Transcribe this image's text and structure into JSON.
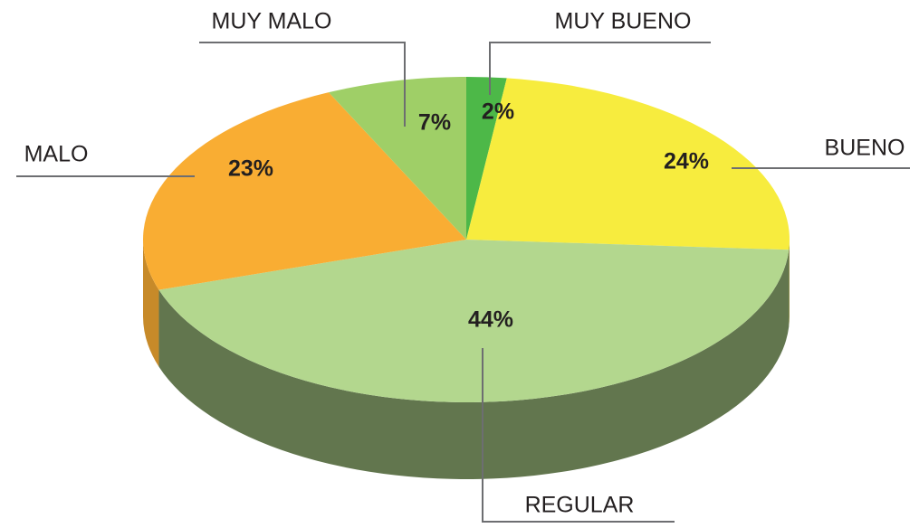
{
  "chart_data": {
    "type": "pie",
    "categories": [
      "MUY BUENO",
      "BUENO",
      "REGULAR",
      "MALO",
      "MUY MALO"
    ],
    "values": [
      2,
      24,
      44,
      23,
      7
    ],
    "value_labels": [
      "2%",
      "24%",
      "44%",
      "23%",
      "7%"
    ],
    "colors": [
      "#4db848",
      "#f7ec3e",
      "#b3d78e",
      "#f9ad33",
      "#9fcf67"
    ]
  }
}
